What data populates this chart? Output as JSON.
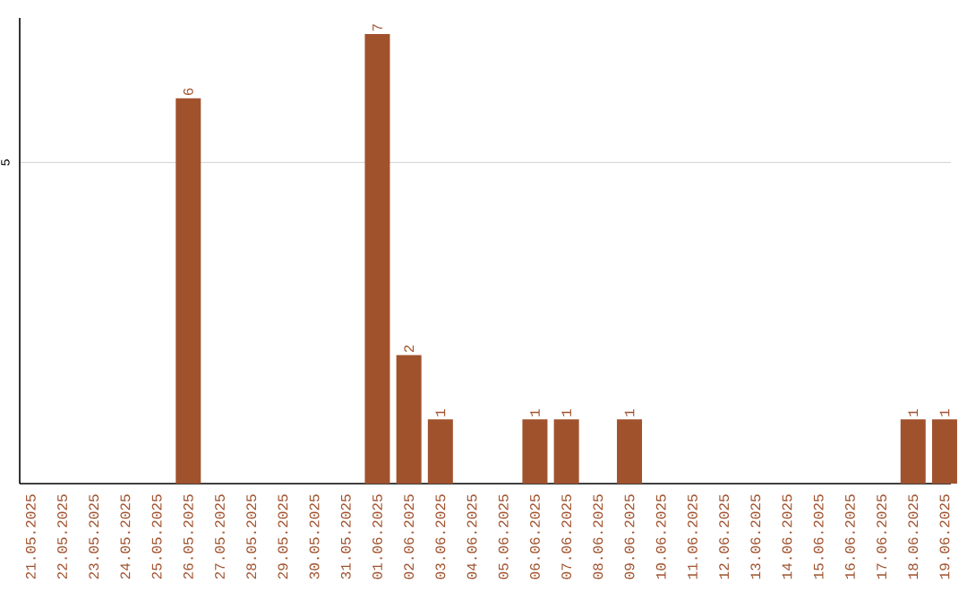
{
  "chart_data": {
    "type": "bar",
    "categories": [
      "21.05.2025",
      "22.05.2025",
      "23.05.2025",
      "24.05.2025",
      "25.05.2025",
      "26.05.2025",
      "27.05.2025",
      "28.05.2025",
      "29.05.2025",
      "30.05.2025",
      "31.05.2025",
      "01.06.2025",
      "02.06.2025",
      "03.06.2025",
      "04.06.2025",
      "05.06.2025",
      "06.06.2025",
      "07.06.2025",
      "08.06.2025",
      "09.06.2025",
      "10.06.2025",
      "11.06.2025",
      "12.06.2025",
      "13.06.2025",
      "14.06.2025",
      "15.06.2025",
      "16.06.2025",
      "17.06.2025",
      "18.06.2025",
      "19.06.2025"
    ],
    "values": [
      0,
      0,
      0,
      0,
      0,
      6,
      0,
      0,
      0,
      0,
      0,
      7,
      2,
      1,
      0,
      0,
      1,
      1,
      0,
      1,
      0,
      0,
      0,
      0,
      0,
      0,
      0,
      0,
      1,
      1
    ],
    "value_labels": [
      null,
      null,
      null,
      null,
      null,
      "6",
      null,
      null,
      null,
      null,
      null,
      "7",
      "2",
      "1",
      null,
      null,
      "1",
      "1",
      null,
      "1",
      null,
      null,
      null,
      null,
      null,
      null,
      null,
      null,
      "1",
      "1"
    ],
    "color": "#a0522d",
    "ylim": [
      0,
      7.25
    ],
    "yticks": [
      5
    ],
    "grid": "y"
  }
}
